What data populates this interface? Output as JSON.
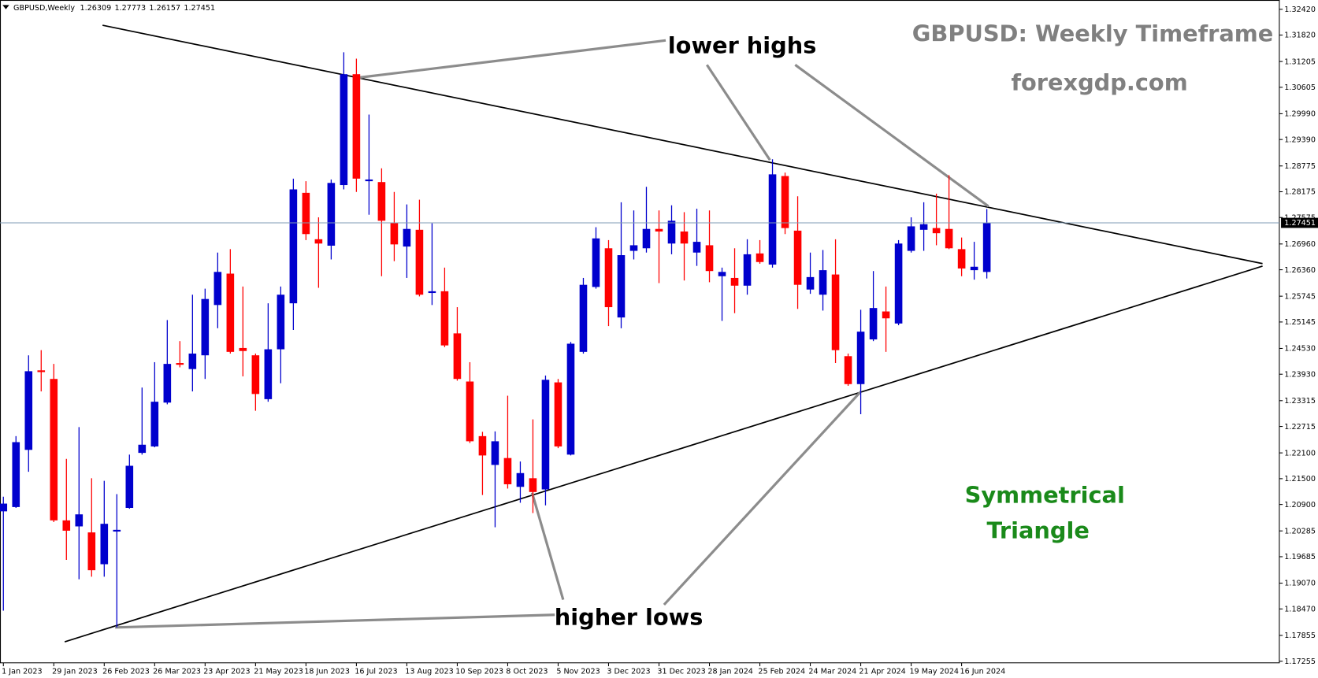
{
  "chart_data": {
    "type": "candlestick",
    "symbol": "GBPUSD,Weekly",
    "title": "GBPUSD: Weekly Timeframe",
    "subtitle": "forexgdp.com",
    "annotations": [
      "lower highs",
      "higher lows",
      "Symmetrical",
      "Triangle"
    ],
    "categories": [
      "1 Jan 2023",
      null,
      null,
      null,
      "29 Jan 2023",
      null,
      null,
      null,
      "26 Feb 2023",
      null,
      null,
      null,
      "26 Mar 2023",
      null,
      null,
      null,
      "23 Apr 2023",
      null,
      null,
      null,
      "21 May 2023",
      null,
      null,
      null,
      "18 Jun 2023",
      null,
      null,
      null,
      "16 Jul 2023",
      null,
      null,
      null,
      "13 Aug 2023",
      null,
      null,
      null,
      "10 Sep 2023",
      null,
      null,
      null,
      "8 Oct 2023",
      null,
      null,
      null,
      "5 Nov 2023",
      null,
      null,
      null,
      "3 Dec 2023",
      null,
      null,
      null,
      "31 Dec 2023",
      null,
      null,
      null,
      "28 Jan 2024",
      null,
      null,
      null,
      "25 Feb 2024",
      null,
      null,
      null,
      "24 Mar 2024",
      null,
      null,
      null,
      "21 Apr 2024",
      null,
      null,
      null,
      "19 May 2024",
      null,
      null,
      null,
      "16 Jun 2024",
      null,
      null
    ],
    "open": [
      1.2074,
      1.2084,
      1.2217,
      1.2402,
      1.2382,
      1.2053,
      1.2039,
      1.2025,
      1.1951,
      1.2027,
      1.2082,
      1.221,
      1.2225,
      1.2327,
      1.2419,
      1.2405,
      1.2437,
      1.2554,
      1.2627,
      1.2454,
      1.2437,
      1.2335,
      1.2451,
      1.2558,
      1.2815,
      1.2707,
      1.2692,
      1.2833,
      1.3091,
      1.2842,
      1.284,
      1.2746,
      1.269,
      1.2729,
      1.2582,
      1.2586,
      1.2488,
      1.2376,
      1.2249,
      1.2182,
      1.2198,
      1.2131,
      1.2151,
      1.2125,
      1.2374,
      1.2206,
      1.2445,
      1.2596,
      1.2686,
      1.2525,
      1.268,
      1.2686,
      1.2731,
      1.2697,
      1.2725,
      1.2676,
      1.2693,
      1.2621,
      1.2617,
      1.2599,
      1.2674,
      1.2648,
      1.2854,
      1.2727,
      1.259,
      1.2578,
      1.2625,
      1.2435,
      1.237,
      1.2474,
      1.2539,
      1.2511,
      1.268,
      1.2729,
      1.2733,
      1.2731,
      1.2684,
      1.2635,
      1.26309
    ],
    "high": [
      1.2108,
      1.2249,
      1.2437,
      1.2449,
      1.2417,
      1.2196,
      1.227,
      1.2151,
      1.2145,
      1.2114,
      1.2206,
      1.2362,
      1.2421,
      1.2519,
      1.247,
      1.2578,
      1.2592,
      1.2676,
      1.2684,
      1.2597,
      1.2441,
      1.2558,
      1.2597,
      1.2848,
      1.2842,
      1.2758,
      1.2846,
      1.3142,
      1.3127,
      1.2997,
      1.2872,
      1.2817,
      1.2788,
      1.2799,
      1.2744,
      1.2641,
      1.2549,
      1.2421,
      1.2259,
      1.226,
      1.2343,
      1.219,
      1.2288,
      1.239,
      1.2382,
      1.2468,
      1.2617,
      1.2735,
      1.2705,
      1.2793,
      1.2774,
      1.2829,
      1.2774,
      1.2786,
      1.277,
      1.2778,
      1.2774,
      1.2641,
      1.2686,
      1.2707,
      1.2705,
      1.2893,
      1.2862,
      1.2807,
      1.2676,
      1.2682,
      1.2707,
      1.2441,
      1.2543,
      1.2633,
      1.2597,
      1.2705,
      1.2758,
      1.2793,
      1.2813,
      1.2856,
      1.2711,
      1.2701,
      1.27773
    ],
    "low": [
      1.1843,
      1.2082,
      1.2166,
      1.2353,
      1.2049,
      1.1961,
      1.1916,
      1.1922,
      1.1922,
      1.1804,
      1.208,
      1.2206,
      1.2223,
      1.2323,
      1.2409,
      1.2353,
      1.2382,
      1.25,
      1.2441,
      1.2388,
      1.2308,
      1.2329,
      1.2372,
      1.2496,
      1.2705,
      1.2594,
      1.266,
      1.2823,
      1.2817,
      1.2764,
      1.2621,
      1.2656,
      1.2617,
      1.2574,
      1.2554,
      1.2456,
      1.2378,
      1.2233,
      1.2112,
      1.2037,
      1.2127,
      1.2094,
      1.207,
      1.2088,
      1.2221,
      1.2204,
      1.2441,
      1.2592,
      1.2505,
      1.25,
      1.266,
      1.2676,
      1.2605,
      1.2672,
      1.2611,
      1.2645,
      1.2607,
      1.2517,
      1.2535,
      1.2578,
      1.265,
      1.2641,
      1.2719,
      1.2545,
      1.258,
      1.2541,
      1.2419,
      1.2366,
      1.23,
      1.247,
      1.2445,
      1.2507,
      1.2676,
      1.268,
      1.2693,
      1.2684,
      1.2621,
      1.2613,
      1.26157
    ],
    "close": [
      1.2092,
      1.2235,
      1.24,
      1.2398,
      1.2053,
      1.2029,
      1.2067,
      1.1937,
      1.2045,
      1.2031,
      1.218,
      1.2229,
      1.2329,
      1.2417,
      1.2415,
      1.2441,
      1.2568,
      1.2631,
      1.2445,
      1.2447,
      1.2347,
      1.2451,
      1.2578,
      1.2823,
      1.2719,
      1.2697,
      1.2838,
      1.3091,
      1.2848,
      1.2846,
      1.275,
      1.2695,
      1.2731,
      1.2578,
      1.2586,
      1.246,
      1.2382,
      1.2237,
      1.2204,
      1.2237,
      1.2137,
      1.2163,
      1.2119,
      1.238,
      1.2225,
      1.2464,
      1.2601,
      1.2709,
      1.2549,
      1.267,
      1.2693,
      1.2731,
      1.2725,
      1.275,
      1.2697,
      1.2701,
      1.2633,
      1.2631,
      1.2599,
      1.2672,
      1.2654,
      1.2858,
      1.2733,
      1.2601,
      1.2619,
      1.2635,
      1.2449,
      1.237,
      1.2492,
      1.2547,
      1.2523,
      1.2697,
      1.2737,
      1.2742,
      1.2721,
      1.2686,
      1.2639,
      1.2643,
      1.27451
    ],
    "up_color": "#0000cd",
    "down_color": "#ff0000",
    "price_line_color": "#7f9bb5",
    "ylim": [
      1.17255,
      1.3242
    ],
    "yticks": [
      1.17255,
      1.17855,
      {
        "value": 1.1847,
        "label": "1.18470"
      },
      {
        "value": 1.1907,
        "label": "1.19070"
      },
      1.19685,
      1.20285,
      {
        "value": 1.209,
        "label": "1.20900"
      },
      {
        "value": 1.215,
        "label": "1.21500"
      },
      {
        "value": 1.221,
        "label": "1.22100"
      },
      1.22715,
      1.23315,
      {
        "value": 1.2393,
        "label": "1.23930"
      },
      {
        "value": 1.2453,
        "label": "1.24530"
      },
      1.25145,
      1.25745,
      {
        "value": 1.2636,
        "label": "1.26360"
      },
      {
        "value": 1.2696,
        "label": "1.26960"
      },
      1.27575,
      1.28175,
      1.28775,
      {
        "value": 1.2939,
        "label": "1.29390"
      },
      {
        "value": 1.2999,
        "label": "1.29990"
      },
      1.30605,
      1.31205,
      {
        "value": 1.3182,
        "label": "1.31820"
      },
      {
        "value": 1.3242,
        "label": "1.32420"
      }
    ],
    "grid": false
  }
}
